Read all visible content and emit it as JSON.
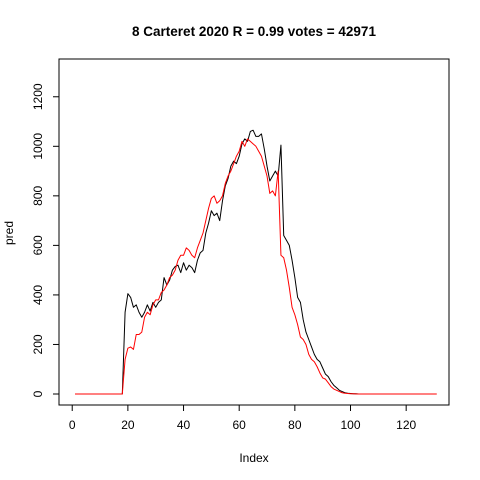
{
  "chart_data": {
    "type": "line",
    "title": "8 Carteret 2020 R = 0.99 votes = 42971",
    "xlabel": "Index",
    "ylabel": "pred",
    "xlim": [
      1,
      130
    ],
    "ylim": [
      0,
      1300
    ],
    "x_ticks": [
      0,
      20,
      40,
      60,
      80,
      100,
      120
    ],
    "x_tick_labels": [
      "0",
      "20",
      "40",
      "60",
      "80",
      "100",
      "120"
    ],
    "y_ticks": [
      0,
      200,
      400,
      600,
      800,
      1000,
      1200
    ],
    "y_tick_labels": [
      "0",
      "200",
      "400",
      "600",
      "800",
      "1000",
      "1200"
    ],
    "grid": false,
    "legend": "none",
    "series": [
      {
        "color": "#000000",
        "values": [
          0,
          0,
          0,
          0,
          0,
          0,
          0,
          0,
          0,
          0,
          0,
          0,
          0,
          0,
          0,
          0,
          0,
          0,
          330,
          405,
          390,
          350,
          360,
          330,
          310,
          330,
          360,
          335,
          370,
          350,
          370,
          380,
          470,
          440,
          460,
          500,
          515,
          520,
          490,
          530,
          500,
          520,
          510,
          490,
          540,
          570,
          580,
          650,
          690,
          740,
          720,
          730,
          700,
          780,
          840,
          870,
          920,
          940,
          930,
          960,
          1010,
          1030,
          1020,
          1060,
          1065,
          1040,
          1040,
          1050,
          990,
          920,
          860,
          880,
          900,
          880,
          1005,
          640,
          620,
          600,
          540,
          470,
          390,
          370,
          300,
          250,
          220,
          190,
          160,
          140,
          130,
          105,
          80,
          70,
          50,
          35,
          25,
          15,
          10,
          5,
          3,
          2,
          1,
          1,
          0,
          0,
          0,
          0,
          0,
          0,
          0,
          0,
          0,
          0,
          0,
          0,
          0,
          0,
          0,
          0,
          0,
          0,
          0,
          0,
          0,
          0,
          0,
          0,
          0,
          0,
          0,
          0
        ]
      },
      {
        "color": "#ff0000",
        "values": [
          0,
          0,
          0,
          0,
          0,
          0,
          0,
          0,
          0,
          0,
          0,
          0,
          0,
          0,
          0,
          0,
          0,
          0,
          140,
          185,
          190,
          180,
          240,
          240,
          250,
          310,
          330,
          320,
          360,
          380,
          380,
          410,
          420,
          440,
          470,
          480,
          500,
          540,
          560,
          560,
          590,
          580,
          560,
          550,
          590,
          620,
          650,
          700,
          750,
          790,
          800,
          770,
          780,
          800,
          850,
          880,
          900,
          930,
          960,
          980,
          1020,
          1000,
          1030,
          1020,
          1010,
          1000,
          980,
          960,
          920,
          880,
          810,
          820,
          800,
          900,
          560,
          550,
          500,
          430,
          350,
          320,
          280,
          230,
          220,
          200,
          160,
          140,
          130,
          110,
          85,
          65,
          60,
          45,
          30,
          20,
          15,
          10,
          5,
          3,
          2,
          1,
          1,
          0,
          0,
          0,
          0,
          0,
          0,
          0,
          0,
          0,
          0,
          0,
          0,
          0,
          0,
          0,
          0,
          0,
          0,
          0,
          0,
          0,
          0,
          0,
          0,
          0,
          0,
          0,
          0,
          0,
          0
        ]
      }
    ]
  }
}
